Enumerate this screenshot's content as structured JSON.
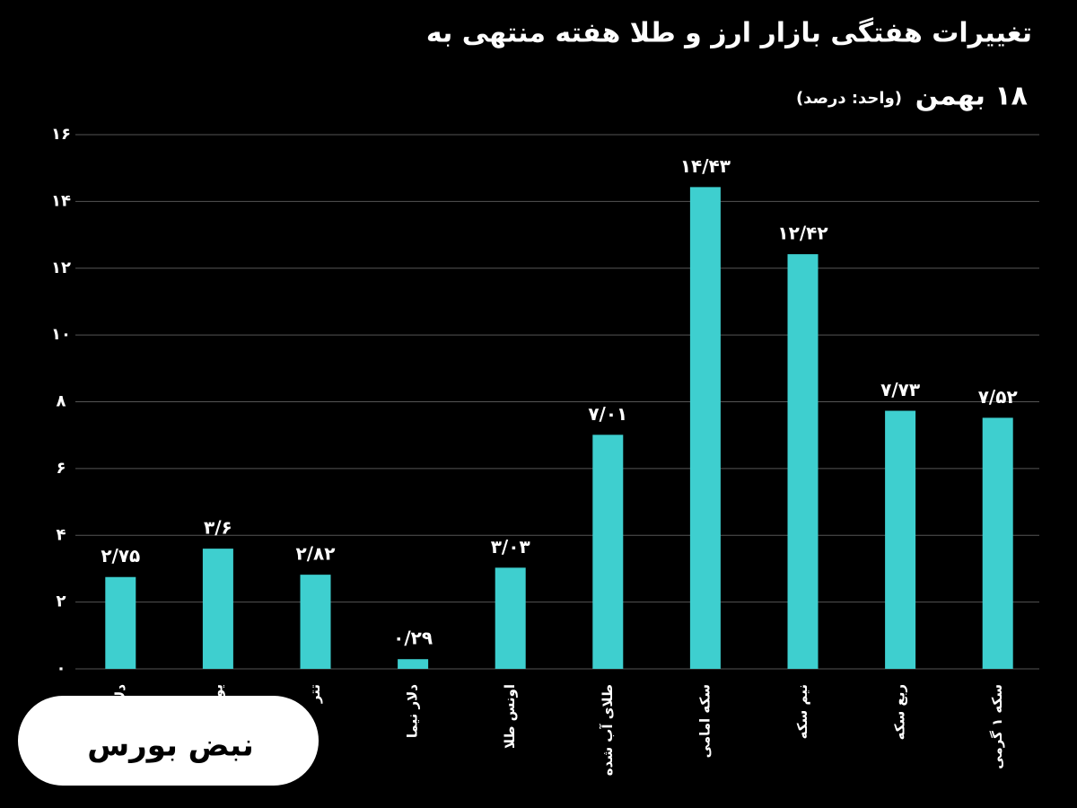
{
  "chart_data": {
    "type": "bar",
    "title": "تغییرات هفتگی بازار ارز و طلا هفته منتهی به",
    "title_line2": "۱۸ بهمن",
    "subtitle": "(واحد: درصد)",
    "categories": [
      "دلار آزاد",
      "یورو",
      "تتر",
      "دلار نیما",
      "اونس طلا",
      "طلای آب شده",
      "سکه امامی",
      "نیم سکه",
      "ربع سکه",
      "سکه ۱ گرمی"
    ],
    "values": [
      2.75,
      3.6,
      2.82,
      0.29,
      3.03,
      7.01,
      14.43,
      12.42,
      7.73,
      7.52
    ],
    "value_labels": [
      "۲/۷۵",
      "۳/۶",
      "۲/۸۲",
      "۰/۲۹",
      "۳/۰۳",
      "۷/۰۱",
      "۱۴/۴۳",
      "۱۲/۴۲",
      "۷/۷۳",
      "۷/۵۲"
    ],
    "color": "#3ecfcf",
    "ylim": [
      0,
      16
    ],
    "yticks": [
      {
        "value": 0,
        "label": "۰"
      },
      {
        "value": 2,
        "label": "۲"
      },
      {
        "value": 4,
        "label": "۴"
      },
      {
        "value": 6,
        "label": "۶"
      },
      {
        "value": 8,
        "label": "۸"
      },
      {
        "value": 10,
        "label": "۱۰"
      },
      {
        "value": 12,
        "label": "۱۲"
      },
      {
        "value": 14,
        "label": "۱۴"
      },
      {
        "value": 16,
        "label": "۱۶"
      }
    ],
    "grid": true
  },
  "logo": "نبض بورس"
}
